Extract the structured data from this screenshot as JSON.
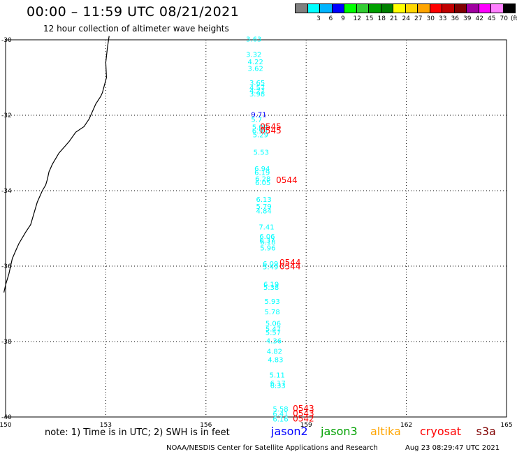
{
  "header": {
    "title": "00:00 – 11:59 UTC 08/21/2021",
    "subtitle": "12 hour collection of altimeter wave heights"
  },
  "color_scale": {
    "unit_label": "(ft)",
    "bins": [
      {
        "label": "",
        "color": "#808080"
      },
      {
        "label": "3",
        "color": "#00ffff"
      },
      {
        "label": "6",
        "color": "#00b4ff"
      },
      {
        "label": "9",
        "color": "#0000ff"
      },
      {
        "label": "12",
        "color": "#00ff00"
      },
      {
        "label": "15",
        "color": "#32cd32"
      },
      {
        "label": "18",
        "color": "#00a000"
      },
      {
        "label": "21",
        "color": "#008000"
      },
      {
        "label": "24",
        "color": "#ffff00"
      },
      {
        "label": "27",
        "color": "#ffd700"
      },
      {
        "label": "30",
        "color": "#ffa500"
      },
      {
        "label": "33",
        "color": "#ff0000"
      },
      {
        "label": "36",
        "color": "#c00000"
      },
      {
        "label": "39",
        "color": "#800000"
      },
      {
        "label": "42",
        "color": "#a000a0"
      },
      {
        "label": "45",
        "color": "#ff00ff"
      },
      {
        "label": "70",
        "color": "#ff80ff"
      },
      {
        "label": "",
        "color": "#000000"
      }
    ]
  },
  "axes": {
    "lon_ticks": [
      "150",
      "153",
      "156",
      "159",
      "162",
      "165"
    ],
    "lat_ticks": [
      "-30",
      "-32",
      "-34",
      "-36",
      "-38",
      "-40"
    ]
  },
  "observations": [
    {
      "text": "3.63",
      "lon": 157.2,
      "lat": -30.05,
      "color": "#00ffff"
    },
    {
      "text": "3.32",
      "lon": 157.2,
      "lat": -30.45,
      "color": "#00ffff"
    },
    {
      "text": "4.22",
      "lon": 157.25,
      "lat": -30.65,
      "color": "#00ffff"
    },
    {
      "text": "3.62",
      "lon": 157.25,
      "lat": -30.82,
      "color": "#00ffff"
    },
    {
      "text": "3.65",
      "lon": 157.3,
      "lat": -31.2,
      "color": "#00ffff"
    },
    {
      "text": "4.57",
      "lon": 157.3,
      "lat": -31.33,
      "color": "#00ffff"
    },
    {
      "text": "4.27",
      "lon": 157.3,
      "lat": -31.42,
      "color": "#00ffff"
    },
    {
      "text": "3.98",
      "lon": 157.3,
      "lat": -31.5,
      "color": "#00ffff"
    },
    {
      "text": "9.71",
      "lon": 157.35,
      "lat": -32.05,
      "color": "#0000ff"
    },
    {
      "text": "5.7",
      "lon": 157.35,
      "lat": -32.18,
      "color": "#00ffff"
    },
    {
      "text": "5.09",
      "lon": 157.38,
      "lat": -32.38,
      "color": "#00ffff"
    },
    {
      "text": "6.99",
      "lon": 157.38,
      "lat": -32.48,
      "color": "#00ffff"
    },
    {
      "text": "5.29",
      "lon": 157.4,
      "lat": -32.58,
      "color": "#00ffff"
    },
    {
      "text": "5.53",
      "lon": 157.42,
      "lat": -33.05,
      "color": "#00ffff"
    },
    {
      "text": "6.94",
      "lon": 157.45,
      "lat": -33.48,
      "color": "#00ffff"
    },
    {
      "text": "6.19",
      "lon": 157.45,
      "lat": -33.58,
      "color": "#00ffff"
    },
    {
      "text": "6.28",
      "lon": 157.47,
      "lat": -33.75,
      "color": "#00ffff"
    },
    {
      "text": "6.05",
      "lon": 157.47,
      "lat": -33.85,
      "color": "#00ffff"
    },
    {
      "text": "6.13",
      "lon": 157.5,
      "lat": -34.3,
      "color": "#00ffff"
    },
    {
      "text": "5.79",
      "lon": 157.5,
      "lat": -34.48,
      "color": "#00ffff"
    },
    {
      "text": "4.84",
      "lon": 157.5,
      "lat": -34.6,
      "color": "#00ffff"
    },
    {
      "text": "7.41",
      "lon": 157.58,
      "lat": -35.03,
      "color": "#00ffff"
    },
    {
      "text": "6.06",
      "lon": 157.6,
      "lat": -35.28,
      "color": "#00ffff"
    },
    {
      "text": "6.37",
      "lon": 157.6,
      "lat": -35.38,
      "color": "#00ffff"
    },
    {
      "text": "6.18",
      "lon": 157.62,
      "lat": -35.43,
      "color": "#00ffff"
    },
    {
      "text": "5.96",
      "lon": 157.62,
      "lat": -35.58,
      "color": "#00ffff"
    },
    {
      "text": "6.09",
      "lon": 157.7,
      "lat": -36.0,
      "color": "#00ffff"
    },
    {
      "text": "5.49",
      "lon": 157.7,
      "lat": -36.08,
      "color": "#00ffff"
    },
    {
      "text": "6.19",
      "lon": 157.72,
      "lat": -36.55,
      "color": "#00ffff"
    },
    {
      "text": "5.38",
      "lon": 157.72,
      "lat": -36.63,
      "color": "#00ffff"
    },
    {
      "text": "5.93",
      "lon": 157.75,
      "lat": -37.0,
      "color": "#00ffff"
    },
    {
      "text": "5.78",
      "lon": 157.75,
      "lat": -37.28,
      "color": "#00ffff"
    },
    {
      "text": "5.06",
      "lon": 157.78,
      "lat": -37.58,
      "color": "#00ffff"
    },
    {
      "text": "5.47",
      "lon": 157.78,
      "lat": -37.73,
      "color": "#00ffff"
    },
    {
      "text": "5.57",
      "lon": 157.78,
      "lat": -37.82,
      "color": "#00ffff"
    },
    {
      "text": "4.36",
      "lon": 157.8,
      "lat": -38.05,
      "color": "#00ffff"
    },
    {
      "text": "4.82",
      "lon": 157.82,
      "lat": -38.32,
      "color": "#00ffff"
    },
    {
      "text": "4.83",
      "lon": 157.85,
      "lat": -38.55,
      "color": "#00ffff"
    },
    {
      "text": "5.11",
      "lon": 157.9,
      "lat": -38.95,
      "color": "#00ffff"
    },
    {
      "text": "6.17",
      "lon": 157.92,
      "lat": -39.17,
      "color": "#00ffff"
    },
    {
      "text": "6.33",
      "lon": 157.92,
      "lat": -39.23,
      "color": "#00ffff"
    },
    {
      "text": "5.58",
      "lon": 158.0,
      "lat": -39.85,
      "color": "#00ffff"
    },
    {
      "text": "6.41",
      "lon": 158.0,
      "lat": -39.98,
      "color": "#00ffff"
    },
    {
      "text": "6.16",
      "lon": 158.0,
      "lat": -40.12,
      "color": "#00ffff"
    }
  ],
  "times": [
    {
      "text": "0545",
      "lon": 157.62,
      "lat": -32.38,
      "color": "#ff0000"
    },
    {
      "text": "0545",
      "lon": 157.62,
      "lat": -32.48,
      "color": "#ff0000"
    },
    {
      "text": "0544",
      "lon": 158.1,
      "lat": -33.8,
      "color": "#ff0000"
    },
    {
      "text": "0544",
      "lon": 158.2,
      "lat": -35.98,
      "color": "#ff0000"
    },
    {
      "text": "0544",
      "lon": 158.2,
      "lat": -36.08,
      "color": "#ff0000"
    },
    {
      "text": "0543",
      "lon": 158.6,
      "lat": -39.85,
      "color": "#ff0000"
    },
    {
      "text": "0543",
      "lon": 158.6,
      "lat": -39.98,
      "color": "#ff0000"
    },
    {
      "text": "0542",
      "lon": 158.6,
      "lat": -40.12,
      "color": "#ff0000"
    }
  ],
  "coastline": [
    [
      153.1,
      -29.9
    ],
    [
      153.05,
      -30.2
    ],
    [
      153.0,
      -30.6
    ],
    [
      153.02,
      -31.0
    ],
    [
      152.9,
      -31.4
    ],
    [
      152.85,
      -31.5
    ],
    [
      152.7,
      -31.7
    ],
    [
      152.6,
      -31.9
    ],
    [
      152.5,
      -32.1
    ],
    [
      152.35,
      -32.3
    ],
    [
      152.1,
      -32.45
    ],
    [
      151.9,
      -32.7
    ],
    [
      151.75,
      -32.85
    ],
    [
      151.6,
      -33.0
    ],
    [
      151.4,
      -33.3
    ],
    [
      151.3,
      -33.5
    ],
    [
      151.25,
      -33.7
    ],
    [
      151.2,
      -33.85
    ],
    [
      151.1,
      -34.0
    ],
    [
      150.95,
      -34.3
    ],
    [
      150.85,
      -34.6
    ],
    [
      150.75,
      -34.9
    ],
    [
      150.6,
      -35.1
    ],
    [
      150.4,
      -35.4
    ],
    [
      150.3,
      -35.6
    ],
    [
      150.2,
      -35.8
    ],
    [
      150.15,
      -36.0
    ],
    [
      150.1,
      -36.2
    ],
    [
      150.0,
      -36.5
    ],
    [
      149.95,
      -36.7
    ]
  ],
  "footer": {
    "note": "note:  1) Time is in UTC; 2) SWH is in feet",
    "legend": [
      {
        "name": "jason2",
        "color": "#0000ff"
      },
      {
        "name": "jason3",
        "color": "#00a000"
      },
      {
        "name": "altika",
        "color": "#ffa500"
      },
      {
        "name": "cryosat",
        "color": "#ff0000"
      },
      {
        "name": "s3a",
        "color": "#800000"
      }
    ],
    "credit": "NOAA/NESDIS Center for Satellite Applications and Research",
    "timestamp": "Aug 23 08:29:47 UTC 2021"
  }
}
